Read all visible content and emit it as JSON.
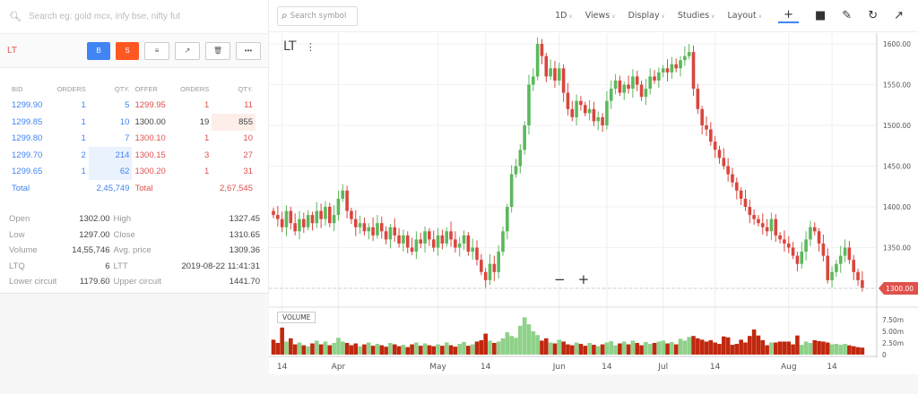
{
  "search": {
    "placeholder": "Search eg: gold mcx, infy bse, nifty fut"
  },
  "instrument": {
    "symbol": "LT",
    "buttons": {
      "buy": "B",
      "sell": "S",
      "depth": "≡",
      "chart": "↗",
      "delete": "🗑",
      "more": "•••"
    }
  },
  "depth": {
    "headers": [
      "BID",
      "ORDERS",
      "QTY.",
      "OFFER",
      "ORDERS",
      "QTY."
    ],
    "bids": [
      [
        "1299.90",
        "1",
        "5"
      ],
      [
        "1299.85",
        "1",
        "10"
      ],
      [
        "1299.80",
        "1",
        "7"
      ],
      [
        "1299.70",
        "2",
        "214"
      ],
      [
        "1299.65",
        "1",
        "62"
      ]
    ],
    "offers": [
      [
        "1299.95",
        "1",
        "11"
      ],
      [
        "1300.00",
        "19",
        "855"
      ],
      [
        "1300.10",
        "1",
        "10"
      ],
      [
        "1300.15",
        "3",
        "27"
      ],
      [
        "1300.20",
        "1",
        "31"
      ]
    ],
    "total_label": "Total",
    "bid_total": "2,45,749",
    "offer_total": "2,67,545"
  },
  "stats": [
    [
      "Open",
      "1302.00",
      "High",
      "1327.45"
    ],
    [
      "Low",
      "1297.00",
      "Close",
      "1310.65"
    ],
    [
      "Volume",
      "14,55,746",
      "Avg. price",
      "1309.36"
    ],
    [
      "LTQ",
      "6",
      "LTT",
      "2019-08-22 11:41:31"
    ],
    [
      "Lower circuit",
      "1179.60",
      "Upper circuit",
      "1441.70"
    ]
  ],
  "toolbar": {
    "search_placeholder": "Search symbol",
    "interval": "1D",
    "menus": [
      "Views",
      "Display",
      "Studies",
      "Layout"
    ]
  },
  "chart_data": {
    "type": "candlestick",
    "symbol_label": "LT",
    "volume_label": "VOLUME",
    "ylim": [
      1280,
      1620
    ],
    "yticks": [
      1300,
      1350,
      1400,
      1450,
      1500,
      1550,
      1600
    ],
    "ytick_labels": [
      "1300.00",
      "1350.00",
      "1400.00",
      "1450.00",
      "1500.00",
      "1550.00",
      "1600.00"
    ],
    "last_price": "1300.00",
    "volume_ylim": [
      0,
      8
    ],
    "volume_ticks": [
      "7.50m",
      "5.00m",
      "2.50m",
      "0"
    ],
    "volume_tick_values": [
      7.5,
      5,
      2.5,
      0
    ],
    "xticks": [
      {
        "at": 2,
        "label": "14"
      },
      {
        "at": 15,
        "label": "Apr"
      },
      {
        "at": 38,
        "label": "May"
      },
      {
        "at": 49,
        "label": "14"
      },
      {
        "at": 66,
        "label": "Jun"
      },
      {
        "at": 77,
        "label": "14"
      },
      {
        "at": 90,
        "label": "Jul"
      },
      {
        "at": 102,
        "label": "14"
      },
      {
        "at": 119,
        "label": "Aug"
      },
      {
        "at": 129,
        "label": "14"
      }
    ],
    "colors": {
      "up": "#5cb85c",
      "down": "#d9463e",
      "up_vol": "#8fd18a",
      "down_vol": "#c0280f"
    },
    "close": [
      1390,
      1385,
      1375,
      1395,
      1380,
      1370,
      1385,
      1375,
      1390,
      1380,
      1395,
      1385,
      1400,
      1380,
      1390,
      1410,
      1420,
      1395,
      1385,
      1375,
      1380,
      1370,
      1375,
      1365,
      1380,
      1370,
      1360,
      1375,
      1365,
      1355,
      1365,
      1350,
      1345,
      1360,
      1355,
      1370,
      1360,
      1350,
      1365,
      1355,
      1370,
      1360,
      1350,
      1355,
      1365,
      1345,
      1350,
      1335,
      1320,
      1310,
      1330,
      1320,
      1345,
      1370,
      1400,
      1440,
      1450,
      1470,
      1500,
      1550,
      1560,
      1600,
      1585,
      1560,
      1570,
      1555,
      1570,
      1540,
      1520,
      1510,
      1530,
      1525,
      1515,
      1520,
      1505,
      1510,
      1500,
      1530,
      1545,
      1555,
      1540,
      1550,
      1545,
      1560,
      1550,
      1535,
      1545,
      1560,
      1555,
      1565,
      1570,
      1565,
      1575,
      1570,
      1580,
      1585,
      1590,
      1545,
      1520,
      1500,
      1495,
      1480,
      1470,
      1460,
      1450,
      1440,
      1430,
      1420,
      1410,
      1400,
      1390,
      1385,
      1380,
      1375,
      1370,
      1385,
      1365,
      1360,
      1355,
      1350,
      1340,
      1330,
      1345,
      1360,
      1375,
      1370,
      1355,
      1340,
      1310,
      1320,
      1330,
      1340,
      1350,
      1335,
      1320,
      1310,
      1300
    ],
    "volume_m": [
      3.2,
      2.5,
      5.8,
      2.8,
      3.5,
      2.2,
      2.6,
      2.0,
      1.8,
      2.4,
      3.0,
      2.2,
      2.8,
      2.0,
      2.5,
      3.6,
      2.8,
      2.5,
      2.0,
      2.4,
      1.8,
      2.2,
      2.6,
      1.9,
      2.3,
      2.0,
      1.7,
      2.5,
      2.2,
      1.8,
      2.1,
      1.6,
      2.2,
      2.6,
      1.9,
      2.4,
      2.0,
      1.8,
      2.2,
      1.9,
      2.6,
      2.0,
      1.7,
      2.3,
      2.7,
      1.9,
      2.2,
      2.8,
      3.1,
      4.5,
      3.0,
      2.5,
      2.8,
      3.5,
      4.8,
      4.0,
      3.6,
      6.2,
      8.0,
      6.5,
      5.0,
      4.2,
      3.0,
      3.5,
      2.6,
      2.4,
      3.2,
      2.8,
      2.2,
      2.0,
      2.6,
      2.3,
      1.9,
      2.5,
      2.1,
      1.8,
      2.2,
      2.6,
      2.9,
      2.0,
      2.4,
      2.8,
      2.2,
      3.0,
      2.5,
      2.0,
      2.7,
      2.3,
      2.5,
      2.8,
      3.0,
      2.4,
      2.7,
      2.2,
      3.4,
      3.0,
      3.8,
      4.0,
      3.5,
      3.2,
      2.8,
      3.1,
      2.6,
      2.3,
      3.9,
      3.7,
      2.1,
      2.3,
      3.2,
      2.6,
      4.0,
      5.4,
      4.1,
      3.1,
      2.0,
      2.6,
      2.6,
      2.8,
      2.8,
      2.8,
      2.2,
      4.1,
      2.1,
      2.8,
      2.5,
      3.1,
      2.9,
      2.8,
      2.6,
      2.2,
      2.3,
      2.1,
      2.3,
      2.0,
      1.8,
      1.6,
      1.5
    ]
  }
}
